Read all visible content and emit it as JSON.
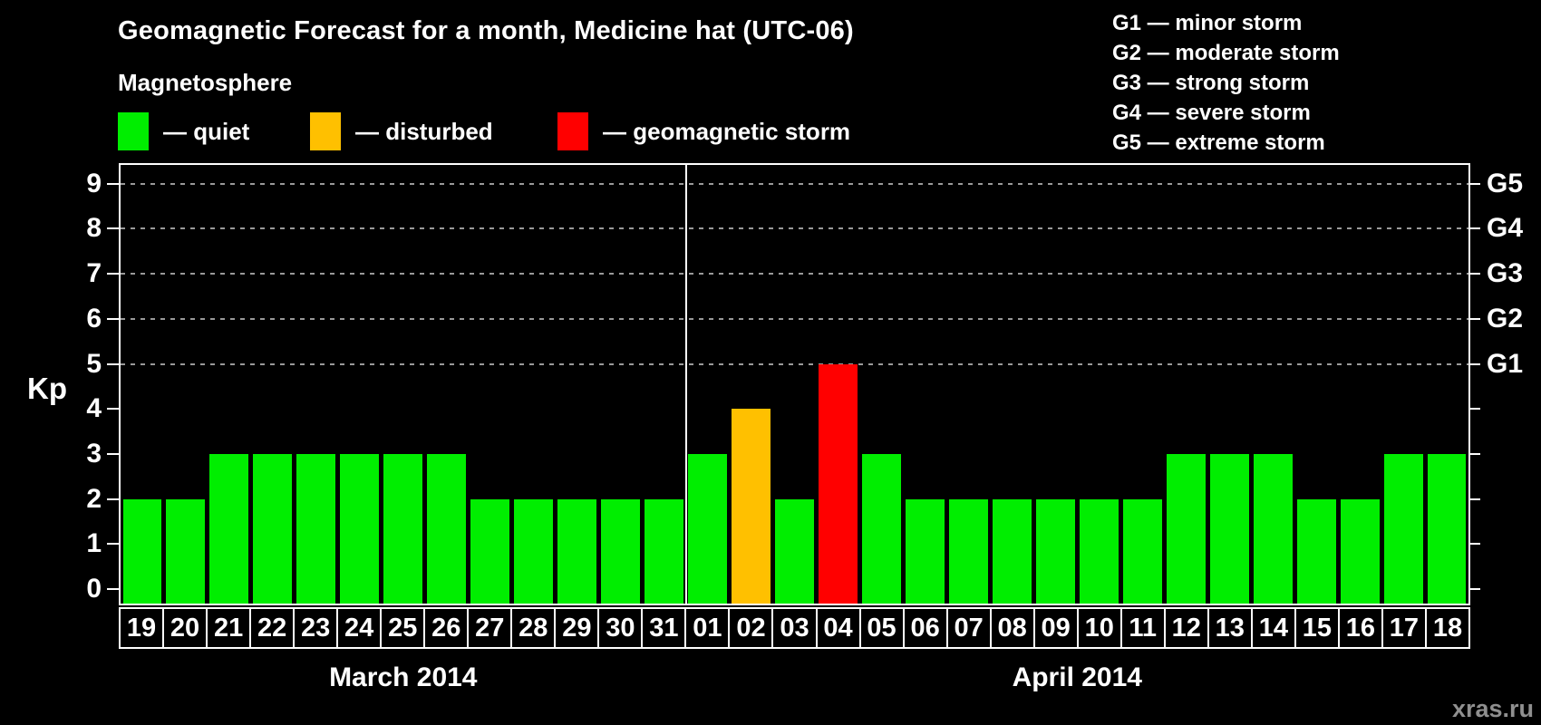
{
  "page": {
    "title": "Geomagnetic Forecast for a month, Medicine hat (UTC-06)",
    "watermark": "xras.ru"
  },
  "magnetosphere_legend": {
    "title": "Magnetosphere",
    "items": [
      {
        "label": "— quiet",
        "status": "quiet",
        "color": "#00ee00"
      },
      {
        "label": "— disturbed",
        "status": "disturbed",
        "color": "#ffc000"
      },
      {
        "label": "— geomagnetic storm",
        "status": "storm",
        "color": "#ff0000"
      }
    ]
  },
  "g_scale_legend": {
    "lines": [
      "G1 — minor storm",
      "G2 — moderate storm",
      "G3 — strong storm",
      "G4 — severe storm",
      "G5 — extreme storm"
    ]
  },
  "chart_data": {
    "type": "bar",
    "title": "Geomagnetic Forecast for a month, Medicine hat (UTC-06)",
    "ylabel": "Kp",
    "ylim": [
      0,
      9.45
    ],
    "yticks": [
      0,
      1,
      2,
      3,
      4,
      5,
      6,
      7,
      8,
      9
    ],
    "gridlines_at_kp": [
      5,
      6,
      7,
      8,
      9
    ],
    "grid_style": "dashed",
    "right_axis": [
      {
        "kp": 9,
        "label": "G5"
      },
      {
        "kp": 8,
        "label": "G4"
      },
      {
        "kp": 7,
        "label": "G3"
      },
      {
        "kp": 6,
        "label": "G2"
      },
      {
        "kp": 5,
        "label": "G1"
      }
    ],
    "status_colors": {
      "quiet": "#00ee00",
      "disturbed": "#ffc000",
      "storm": "#ff0000"
    },
    "months": [
      {
        "label": "March 2014",
        "span": 13
      },
      {
        "label": "April 2014",
        "span": 18
      }
    ],
    "points": [
      {
        "month": "March 2014",
        "date": "19",
        "kp": 2,
        "status": "quiet"
      },
      {
        "month": "March 2014",
        "date": "20",
        "kp": 2,
        "status": "quiet"
      },
      {
        "month": "March 2014",
        "date": "21",
        "kp": 3,
        "status": "quiet"
      },
      {
        "month": "March 2014",
        "date": "22",
        "kp": 3,
        "status": "quiet"
      },
      {
        "month": "March 2014",
        "date": "23",
        "kp": 3,
        "status": "quiet"
      },
      {
        "month": "March 2014",
        "date": "24",
        "kp": 3,
        "status": "quiet"
      },
      {
        "month": "March 2014",
        "date": "25",
        "kp": 3,
        "status": "quiet"
      },
      {
        "month": "March 2014",
        "date": "26",
        "kp": 3,
        "status": "quiet"
      },
      {
        "month": "March 2014",
        "date": "27",
        "kp": 2,
        "status": "quiet"
      },
      {
        "month": "March 2014",
        "date": "28",
        "kp": 2,
        "status": "quiet"
      },
      {
        "month": "March 2014",
        "date": "29",
        "kp": 2,
        "status": "quiet"
      },
      {
        "month": "March 2014",
        "date": "30",
        "kp": 2,
        "status": "quiet"
      },
      {
        "month": "March 2014",
        "date": "31",
        "kp": 2,
        "status": "quiet"
      },
      {
        "month": "April 2014",
        "date": "01",
        "kp": 3,
        "status": "quiet"
      },
      {
        "month": "April 2014",
        "date": "02",
        "kp": 4,
        "status": "disturbed"
      },
      {
        "month": "April 2014",
        "date": "03",
        "kp": 2,
        "status": "quiet"
      },
      {
        "month": "April 2014",
        "date": "04",
        "kp": 5,
        "status": "storm"
      },
      {
        "month": "April 2014",
        "date": "05",
        "kp": 3,
        "status": "quiet"
      },
      {
        "month": "April 2014",
        "date": "06",
        "kp": 2,
        "status": "quiet"
      },
      {
        "month": "April 2014",
        "date": "07",
        "kp": 2,
        "status": "quiet"
      },
      {
        "month": "April 2014",
        "date": "08",
        "kp": 2,
        "status": "quiet"
      },
      {
        "month": "April 2014",
        "date": "09",
        "kp": 2,
        "status": "quiet"
      },
      {
        "month": "April 2014",
        "date": "10",
        "kp": 2,
        "status": "quiet"
      },
      {
        "month": "April 2014",
        "date": "11",
        "kp": 2,
        "status": "quiet"
      },
      {
        "month": "April 2014",
        "date": "12",
        "kp": 3,
        "status": "quiet"
      },
      {
        "month": "April 2014",
        "date": "13",
        "kp": 3,
        "status": "quiet"
      },
      {
        "month": "April 2014",
        "date": "14",
        "kp": 3,
        "status": "quiet"
      },
      {
        "month": "April 2014",
        "date": "15",
        "kp": 2,
        "status": "quiet"
      },
      {
        "month": "April 2014",
        "date": "16",
        "kp": 2,
        "status": "quiet"
      },
      {
        "month": "April 2014",
        "date": "17",
        "kp": 3,
        "status": "quiet"
      },
      {
        "month": "April 2014",
        "date": "18",
        "kp": 3,
        "status": "quiet"
      }
    ]
  }
}
